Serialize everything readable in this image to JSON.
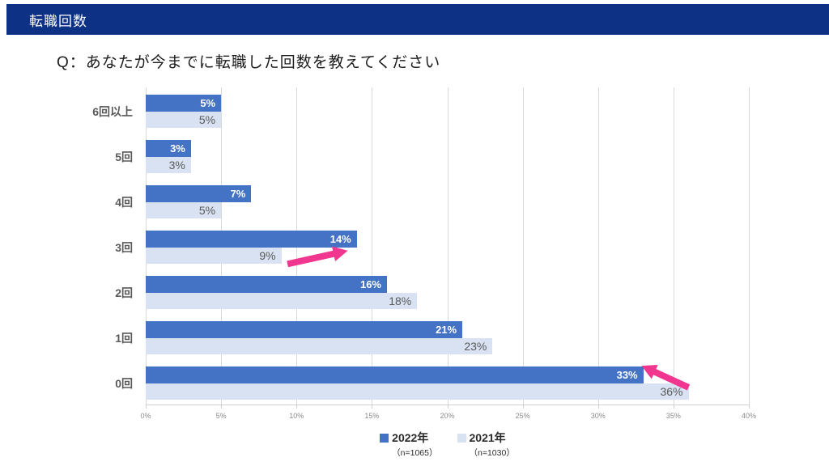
{
  "header": {
    "title": "転職回数",
    "background": "#0D3184",
    "text_color": "#FFFFFF"
  },
  "question": {
    "text": "Q：あなたが今までに転職した回数を教えてください"
  },
  "chart_data": {
    "type": "bar",
    "orientation": "horizontal",
    "title": "転職回数",
    "categories": [
      "6回以上",
      "5回",
      "4回",
      "3回",
      "2回",
      "1回",
      "0回"
    ],
    "series": [
      {
        "name": "2022年",
        "subtitle": "（n=1065）",
        "color": "#4472C4",
        "label_color": "#FFFFFF",
        "values": [
          5,
          3,
          7,
          14,
          16,
          21,
          33
        ]
      },
      {
        "name": "2021年",
        "subtitle": "（n=1030）",
        "color": "#D9E2F3",
        "label_color": "#595959",
        "values": [
          5,
          3,
          5,
          9,
          18,
          23,
          36
        ]
      }
    ],
    "value_suffix": "%",
    "xlim": [
      0,
      40
    ],
    "x_ticks": [
      "0%",
      "5%",
      "10%",
      "15%",
      "20%",
      "25%",
      "30%",
      "35%",
      "40%"
    ],
    "grid": true,
    "gridline_color": "#D9D9D9",
    "axis_label_color": "#8C8C8C",
    "category_label_color": "#595959",
    "legend_position": "bottom-center",
    "annotations": [
      {
        "type": "arrow",
        "color": "#F1368F",
        "target": "3回 2021年 9% bar",
        "direction": "right",
        "from": [
          0.235,
          0.557
        ],
        "to": [
          0.335,
          0.515
        ]
      },
      {
        "type": "arrow",
        "color": "#F1368F",
        "target": "0回 2022年 33% bar",
        "direction": "up-left",
        "from": [
          0.9,
          0.946
        ],
        "to": [
          0.822,
          0.878
        ]
      }
    ]
  }
}
